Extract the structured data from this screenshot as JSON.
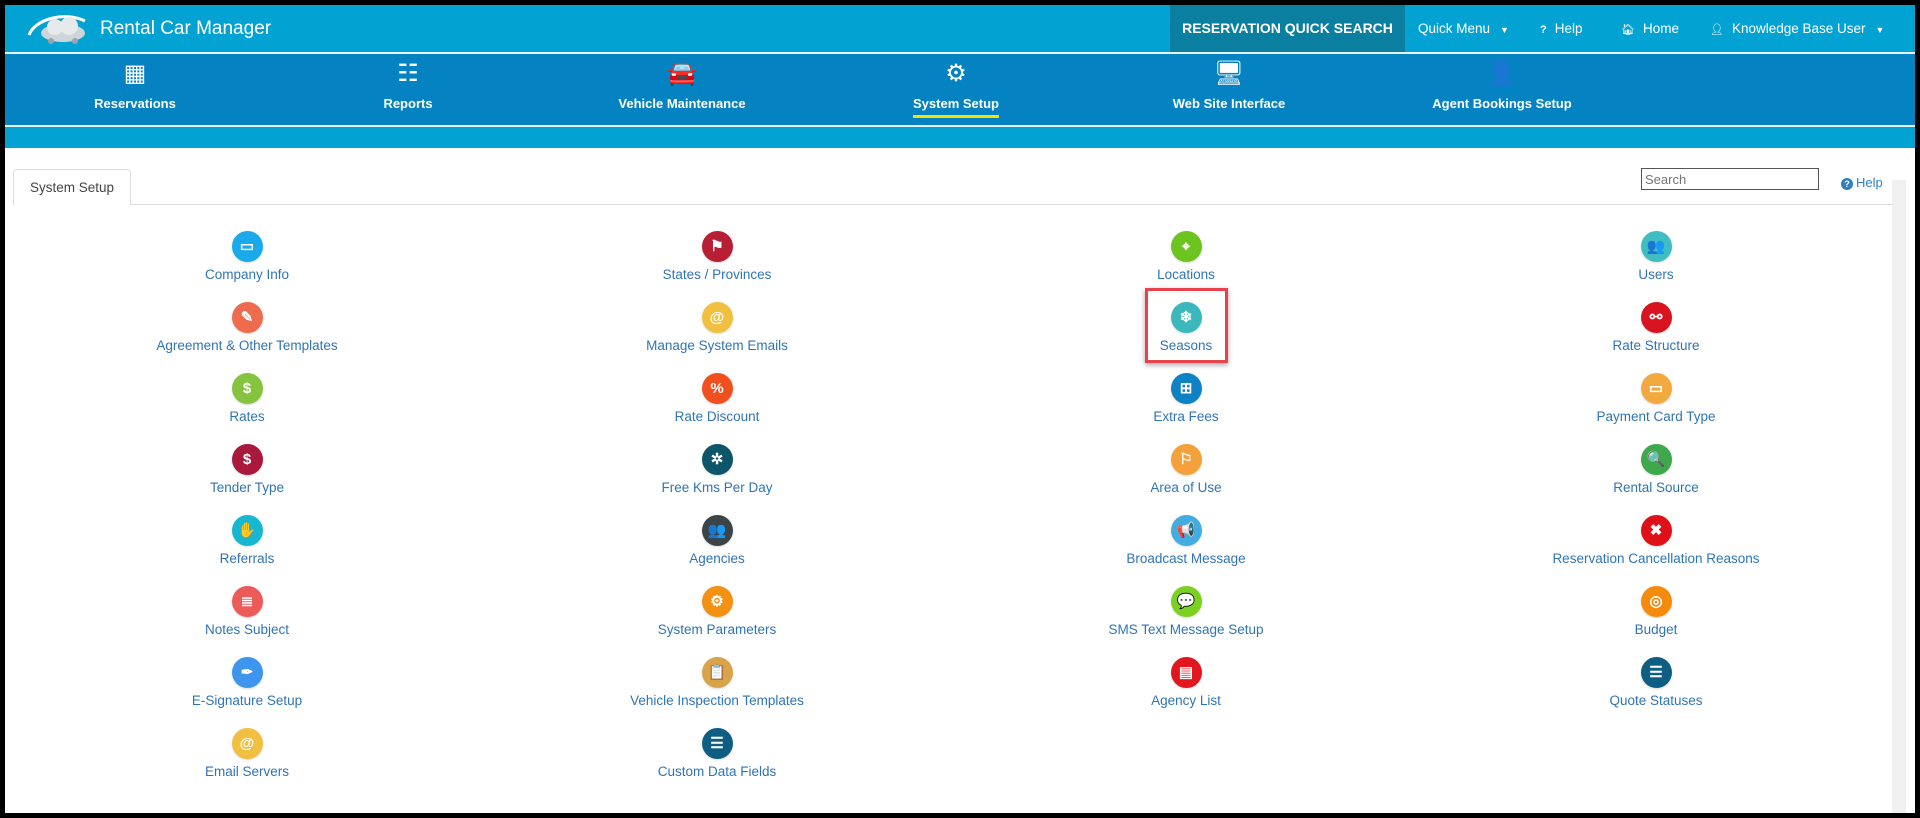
{
  "app": {
    "title": "Rental Car Manager"
  },
  "topbar": {
    "quick_search": "RESERVATION QUICK SEARCH",
    "quick_menu": "Quick Menu",
    "help": "Help",
    "home": "Home",
    "user": "Knowledge Base User"
  },
  "nav": [
    {
      "label": "Reservations",
      "icon": "calendar-icon",
      "glyph": "▦",
      "active": false
    },
    {
      "label": "Reports",
      "icon": "checklist-icon",
      "glyph": "☷",
      "active": false
    },
    {
      "label": "Vehicle Maintenance",
      "icon": "car-icon",
      "glyph": "🚘",
      "active": false
    },
    {
      "label": "System Setup",
      "icon": "gear-icon",
      "glyph": "⚙",
      "active": true
    },
    {
      "label": "Web Site Interface",
      "icon": "monitor-icon",
      "glyph": "🖥",
      "active": false
    },
    {
      "label": "Agent Bookings Setup",
      "icon": "agent-icon",
      "glyph": "👤",
      "active": false
    }
  ],
  "tab": {
    "label": "System Setup"
  },
  "search": {
    "placeholder": "Search",
    "value": ""
  },
  "help_link": "Help",
  "highlighted_item": "Seasons",
  "columns": [
    [
      {
        "label": "Company Info",
        "icon": "folder-icon",
        "glyph": "▭",
        "color": "#1aa9ea"
      },
      {
        "label": "Agreement & Other Templates",
        "icon": "template-icon",
        "glyph": "✎",
        "color": "#ee6b4d"
      },
      {
        "label": "Rates",
        "icon": "rates-icon",
        "glyph": "$",
        "color": "#86c440"
      },
      {
        "label": "Tender Type",
        "icon": "money-bag-icon",
        "glyph": "$",
        "color": "#a8193b"
      },
      {
        "label": "Referrals",
        "icon": "referral-icon",
        "glyph": "✋",
        "color": "#17b7d2"
      },
      {
        "label": "Notes Subject",
        "icon": "notes-icon",
        "glyph": "≣",
        "color": "#ec5a5a"
      },
      {
        "label": "E-Signature Setup",
        "icon": "signature-icon",
        "glyph": "✒",
        "color": "#3e95ee"
      },
      {
        "label": "Email Servers",
        "icon": "at-icon",
        "glyph": "@",
        "color": "#f2c040"
      }
    ],
    [
      {
        "label": "States / Provinces",
        "icon": "flag-icon",
        "glyph": "⚑",
        "color": "#b71f35"
      },
      {
        "label": "Manage System Emails",
        "icon": "at-icon",
        "glyph": "@",
        "color": "#f2c040"
      },
      {
        "label": "Rate Discount",
        "icon": "percent-icon",
        "glyph": "%",
        "color": "#f0501e"
      },
      {
        "label": "Free Kms Per Day",
        "icon": "road-icon",
        "glyph": "✲",
        "color": "#0d5569"
      },
      {
        "label": "Agencies",
        "icon": "people-icon",
        "glyph": "👥",
        "color": "#3b4548"
      },
      {
        "label": "System Parameters",
        "icon": "gears-icon",
        "glyph": "⚙",
        "color": "#f49012"
      },
      {
        "label": "Vehicle Inspection Templates",
        "icon": "clipboard-icon",
        "glyph": "📋",
        "color": "#d9a34b"
      },
      {
        "label": "Custom Data Fields",
        "icon": "list-icon",
        "glyph": "☰",
        "color": "#0d5e82"
      }
    ],
    [
      {
        "label": "Locations",
        "icon": "map-pin-icon",
        "glyph": "⌖",
        "color": "#6cc51e"
      },
      {
        "label": "Seasons",
        "icon": "snowflake-icon",
        "glyph": "❄",
        "color": "#3cb8bd"
      },
      {
        "label": "Extra Fees",
        "icon": "calculator-icon",
        "glyph": "⊞",
        "color": "#0e82c4"
      },
      {
        "label": "Area of Use",
        "icon": "signpost-icon",
        "glyph": "⚐",
        "color": "#f4a13b"
      },
      {
        "label": "Broadcast Message",
        "icon": "megaphone-icon",
        "glyph": "📢",
        "color": "#43addf"
      },
      {
        "label": "SMS Text Message Setup",
        "icon": "sms-icon",
        "glyph": "💬",
        "color": "#7cd022"
      },
      {
        "label": "Agency List",
        "icon": "document-list-icon",
        "glyph": "▤",
        "color": "#e2161d"
      }
    ],
    [
      {
        "label": "Users",
        "icon": "users-icon",
        "glyph": "👥",
        "color": "#3ebec3"
      },
      {
        "label": "Rate Structure",
        "icon": "structure-icon",
        "glyph": "⚯",
        "color": "#d7141f"
      },
      {
        "label": "Payment Card Type",
        "icon": "credit-card-icon",
        "glyph": "▭",
        "color": "#f2aa40"
      },
      {
        "label": "Rental Source",
        "icon": "magnifier-icon",
        "glyph": "🔍",
        "color": "#3ea84c"
      },
      {
        "label": "Reservation Cancellation Reasons",
        "icon": "cancel-icon",
        "glyph": "✖",
        "color": "#df1016"
      },
      {
        "label": "Budget",
        "icon": "target-icon",
        "glyph": "◎",
        "color": "#f58b0c"
      },
      {
        "label": "Quote Statuses",
        "icon": "list-icon",
        "glyph": "☰",
        "color": "#0d5e82"
      }
    ]
  ]
}
